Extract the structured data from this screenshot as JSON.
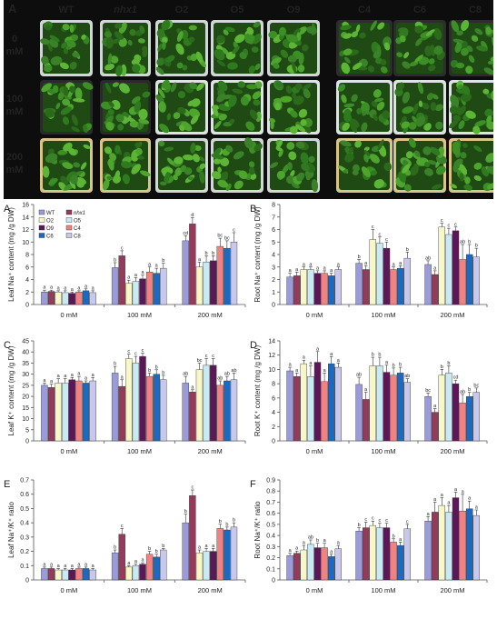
{
  "figure": {
    "photo": {
      "panel_letter": "A",
      "genotypes": [
        "WT",
        "nhx1",
        "O2",
        "O5",
        "O9",
        "C4",
        "C6",
        "C8"
      ],
      "italic_genotype": "nhx1",
      "row_labels": [
        [
          "0",
          "mM"
        ],
        [
          "100",
          "mM"
        ],
        [
          "200",
          "mM"
        ]
      ]
    },
    "legend": [
      {
        "name": "WT",
        "color": "#9b9bdc"
      },
      {
        "name": "nhx1",
        "color": "#943a5a"
      },
      {
        "name": "O2",
        "color": "#f7f7c8"
      },
      {
        "name": "O5",
        "color": "#c9e9f3"
      },
      {
        "name": "O9",
        "color": "#5c1757"
      },
      {
        "name": "C4",
        "color": "#f08282"
      },
      {
        "name": "C6",
        "color": "#1a6ac2"
      },
      {
        "name": "C8",
        "color": "#c8c8ee"
      }
    ]
  },
  "chart_data": [
    {
      "panel": "A",
      "type": "bar",
      "ylabel": "Leaf Na⁺ content (mg /g DW)",
      "ylim": [
        0,
        16
      ],
      "yticks": [
        "0",
        "2",
        "4",
        "6",
        "8",
        "10",
        "12",
        "14",
        "16"
      ],
      "categories": [
        "0 mM",
        "100 mM",
        "200 mM"
      ],
      "show_legend": true,
      "values": [
        [
          2.0,
          2.1,
          2.0,
          1.9,
          1.8,
          2.0,
          2.2,
          1.9
        ],
        [
          5.9,
          7.8,
          3.4,
          3.7,
          4.1,
          5.2,
          5.0,
          5.8
        ],
        [
          10.2,
          12.9,
          6.0,
          6.8,
          7.0,
          9.3,
          9.0,
          10.0
        ]
      ],
      "errors": [
        [
          0.3,
          0.2,
          0.2,
          0.3,
          0.2,
          0.2,
          0.3,
          0.3
        ],
        [
          0.8,
          0.8,
          0.5,
          0.6,
          0.6,
          0.8,
          0.8,
          0.8
        ],
        [
          0.8,
          1.0,
          0.8,
          1.0,
          0.8,
          1.3,
          1.2,
          1.5
        ]
      ],
      "letters": [
        [
          "a",
          "a",
          "a",
          "a",
          "a",
          "a",
          "a",
          "a"
        ],
        [
          "b",
          "c",
          "a",
          "a",
          "a",
          "a",
          "a",
          "b"
        ],
        [
          "cd",
          "d",
          "a",
          "b",
          "b",
          "bc",
          "bc",
          "c"
        ]
      ]
    },
    {
      "panel": "B",
      "type": "bar",
      "ylabel": "Root Na⁺ content (mg /g DW)",
      "ylim": [
        0,
        8
      ],
      "yticks": [
        "0",
        "1",
        "2",
        "3",
        "4",
        "5",
        "6",
        "7",
        "8"
      ],
      "categories": [
        "0 mM",
        "100 mM",
        "200 mM"
      ],
      "show_legend": false,
      "values": [
        [
          2.2,
          2.3,
          2.8,
          2.8,
          2.5,
          2.5,
          2.3,
          2.8
        ],
        [
          3.3,
          2.8,
          5.2,
          4.9,
          4.5,
          2.8,
          2.9,
          3.7
        ],
        [
          3.2,
          2.4,
          6.2,
          5.6,
          5.9,
          3.6,
          4.0,
          3.8
        ]
      ],
      "errors": [
        [
          0.3,
          0.3,
          0.2,
          0.2,
          0.2,
          0.2,
          0.2,
          0.2
        ],
        [
          0.3,
          0.3,
          0.8,
          0.5,
          0.5,
          0.2,
          0.2,
          0.5
        ],
        [
          0.3,
          0.3,
          0.3,
          0.5,
          0.3,
          1.2,
          0.8,
          0.7
        ]
      ],
      "letters": [
        [
          "a",
          "a",
          "a",
          "a",
          "a",
          "a",
          "a",
          "a"
        ],
        [
          "b",
          "a",
          "c",
          "c",
          "c",
          "a",
          "a",
          "b"
        ],
        [
          "ab",
          "a",
          "c",
          "c",
          "c",
          "ab",
          "b",
          "b"
        ]
      ]
    },
    {
      "panel": "C",
      "type": "bar",
      "ylabel": "Leaf K⁺ content (mg /g DW)",
      "ylim": [
        0,
        45
      ],
      "yticks": [
        "0",
        "5",
        "10",
        "15",
        "20",
        "25",
        "30",
        "35",
        "40",
        "45"
      ],
      "categories": [
        "0 mM",
        "100 mM",
        "200 mM"
      ],
      "show_legend": false,
      "values": [
        [
          25.0,
          24.0,
          26.0,
          26.0,
          27.5,
          27.0,
          26.0,
          27.0
        ],
        [
          30.5,
          24.5,
          37.0,
          35.0,
          38.0,
          29.0,
          30.0,
          27.5
        ],
        [
          26.0,
          22.0,
          32.0,
          34.0,
          34.0,
          25.0,
          27.0,
          27.5
        ]
      ],
      "errors": [
        [
          1.0,
          1.5,
          2.0,
          2.0,
          1.0,
          2.0,
          1.0,
          1.5
        ],
        [
          3.0,
          3.0,
          2.0,
          3.0,
          1.5,
          1.5,
          2.0,
          2.0
        ],
        [
          3.0,
          1.0,
          3.0,
          3.0,
          3.0,
          2.0,
          2.0,
          3.0
        ]
      ],
      "letters": [
        [
          "a",
          "a",
          "a",
          "a",
          "a",
          "a",
          "a",
          "a"
        ],
        [
          "b",
          "a",
          "c",
          "c",
          "c",
          "b",
          "b",
          "b"
        ],
        [
          "ab",
          "a",
          "bc",
          "c",
          "c",
          "ab",
          "ab",
          "ab"
        ]
      ]
    },
    {
      "panel": "D",
      "type": "bar",
      "ylabel": "Root K⁺ content (mg /g DW)",
      "ylim": [
        0,
        14
      ],
      "yticks": [
        "0",
        "2",
        "4",
        "6",
        "8",
        "10",
        "12",
        "14"
      ],
      "categories": [
        "0 mM",
        "100 mM",
        "200 mM"
      ],
      "show_legend": false,
      "values": [
        [
          9.8,
          9.0,
          10.8,
          9.0,
          11.0,
          8.3,
          10.8,
          10.3
        ],
        [
          7.9,
          5.8,
          10.5,
          10.5,
          9.6,
          9.2,
          9.5,
          8.2
        ],
        [
          6.2,
          4.0,
          9.2,
          9.5,
          8.0,
          5.3,
          6.2,
          6.8
        ]
      ],
      "errors": [
        [
          0.5,
          0.5,
          0.5,
          1.5,
          1.5,
          1.2,
          1.0,
          0.6
        ],
        [
          1.0,
          1.0,
          1.2,
          1.2,
          1.0,
          1.0,
          0.8,
          0.5
        ],
        [
          0.5,
          0.5,
          0.8,
          1.0,
          0.5,
          1.2,
          0.6,
          0.6
        ]
      ],
      "letters": [
        [
          "a",
          "a",
          "a",
          "a",
          "a",
          "a",
          "a",
          "a"
        ],
        [
          "ab",
          "a",
          "b",
          "b",
          "a",
          "b",
          "b",
          "ab"
        ],
        [
          "bc",
          "a",
          "b",
          "b",
          "cd",
          "ab",
          "b",
          "bc"
        ]
      ]
    },
    {
      "panel": "E",
      "type": "bar",
      "ylabel": "Leaf Na⁺/K⁺ ratio",
      "ylim": [
        0,
        0.7
      ],
      "yticks": [
        "0",
        "0.1",
        "0.2",
        "0.3",
        "0.4",
        "0.5",
        "0.6",
        "0.7"
      ],
      "categories": [
        "0 mM",
        "100 mM",
        "200 mM"
      ],
      "show_legend": false,
      "values": [
        [
          0.08,
          0.08,
          0.07,
          0.07,
          0.07,
          0.08,
          0.08,
          0.07
        ],
        [
          0.19,
          0.32,
          0.09,
          0.1,
          0.11,
          0.18,
          0.16,
          0.21
        ],
        [
          0.4,
          0.59,
          0.19,
          0.2,
          0.2,
          0.36,
          0.35,
          0.37
        ]
      ],
      "errors": [
        [
          0.01,
          0.01,
          0.01,
          0.01,
          0.01,
          0.01,
          0.01,
          0.01
        ],
        [
          0.02,
          0.04,
          0.01,
          0.01,
          0.01,
          0.02,
          0.02,
          0.01
        ],
        [
          0.06,
          0.04,
          0.02,
          0.02,
          0.02,
          0.03,
          0.02,
          0.03
        ]
      ],
      "letters": [
        [
          "a",
          "a",
          "a",
          "a",
          "a",
          "a",
          "a",
          "a"
        ],
        [
          "b",
          "c",
          "a",
          "a",
          "a",
          "b",
          "b",
          "b"
        ],
        [
          "b",
          "c",
          "a",
          "a",
          "a",
          "b",
          "b",
          "b"
        ]
      ]
    },
    {
      "panel": "F",
      "type": "bar",
      "ylabel": "Root Na⁺/K⁺ ratio",
      "ylim": [
        0,
        0.9
      ],
      "yticks": [
        "0",
        "0.1",
        "0.2",
        "0.3",
        "0.4",
        "0.5",
        "0.6",
        "0.7",
        "0.8",
        "0.9"
      ],
      "categories": [
        "0 mM",
        "100 mM",
        "200 mM"
      ],
      "show_legend": false,
      "values": [
        [
          0.22,
          0.24,
          0.27,
          0.32,
          0.29,
          0.29,
          0.21,
          0.28
        ],
        [
          0.44,
          0.47,
          0.49,
          0.47,
          0.47,
          0.34,
          0.31,
          0.46
        ],
        [
          0.53,
          0.61,
          0.67,
          0.61,
          0.74,
          0.62,
          0.64,
          0.58
        ]
      ],
      "errors": [
        [
          0.02,
          0.02,
          0.04,
          0.04,
          0.04,
          0.04,
          0.02,
          0.03
        ],
        [
          0.03,
          0.05,
          0.04,
          0.04,
          0.04,
          0.03,
          0.03,
          0.04
        ],
        [
          0.04,
          0.09,
          0.07,
          0.06,
          0.05,
          0.15,
          0.07,
          0.05
        ]
      ],
      "letters": [
        [
          "a",
          "a",
          "a",
          "ab",
          "b",
          "a",
          "a",
          "a"
        ],
        [
          "b",
          "c",
          "c",
          "c",
          "c",
          "b",
          "a",
          "c"
        ],
        [
          "a",
          "a",
          "a",
          "a",
          "a",
          "a",
          "a",
          "a"
        ]
      ]
    }
  ]
}
